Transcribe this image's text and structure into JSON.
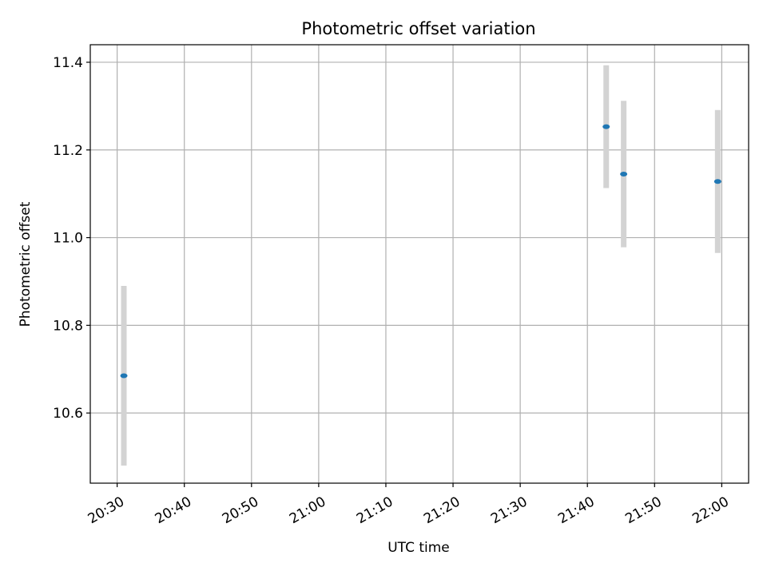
{
  "chart_data": {
    "type": "scatter",
    "title": "Photometric offset variation",
    "xlabel": "UTC time",
    "ylabel": "Photometric offset",
    "x_ticks": [
      "20:30",
      "20:40",
      "20:50",
      "21:00",
      "21:10",
      "21:20",
      "21:30",
      "21:40",
      "21:50",
      "22:00"
    ],
    "y_ticks": [
      "10.6",
      "10.8",
      "11.0",
      "11.2",
      "11.4"
    ],
    "xlim": [
      "20:26",
      "22:04"
    ],
    "ylim": [
      10.44,
      11.44
    ],
    "grid": true,
    "marker_color": "#1f77b4",
    "errorbar_color": "#d3d3d3",
    "points": [
      {
        "x": "20:31",
        "y": 10.685,
        "err": 0.205
      },
      {
        "x": "21:42.8",
        "y": 11.253,
        "err": 0.14
      },
      {
        "x": "21:45.4",
        "y": 11.145,
        "err": 0.167
      },
      {
        "x": "21:59.4",
        "y": 11.128,
        "err": 0.163
      }
    ]
  }
}
